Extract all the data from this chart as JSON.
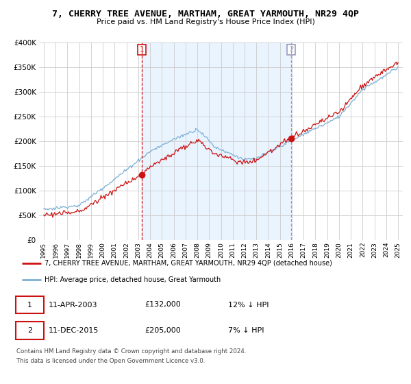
{
  "title": "7, CHERRY TREE AVENUE, MARTHAM, GREAT YARMOUTH, NR29 4QP",
  "subtitle": "Price paid vs. HM Land Registry's House Price Index (HPI)",
  "ylim": [
    0,
    400000
  ],
  "yticks": [
    0,
    50000,
    100000,
    150000,
    200000,
    250000,
    300000,
    350000,
    400000
  ],
  "legend_line1": "7, CHERRY TREE AVENUE, MARTHAM, GREAT YARMOUTH, NR29 4QP (detached house)",
  "legend_line2": "HPI: Average price, detached house, Great Yarmouth",
  "sale1_date": "11-APR-2003",
  "sale1_price": "£132,000",
  "sale1_hpi": "12% ↓ HPI",
  "sale1_year": 2003.28,
  "sale1_value": 132000,
  "sale2_date": "11-DEC-2015",
  "sale2_price": "£205,000",
  "sale2_hpi": "7% ↓ HPI",
  "sale2_year": 2015.95,
  "sale2_value": 205000,
  "footnote1": "Contains HM Land Registry data © Crown copyright and database right 2024.",
  "footnote2": "This data is licensed under the Open Government Licence v3.0.",
  "hpi_color": "#7bafd4",
  "price_color": "#cc1111",
  "vline1_color": "#cc1111",
  "vline2_color": "#9999bb",
  "shade_color": "#ddeeff",
  "background_color": "#ffffff",
  "grid_color": "#cccccc"
}
